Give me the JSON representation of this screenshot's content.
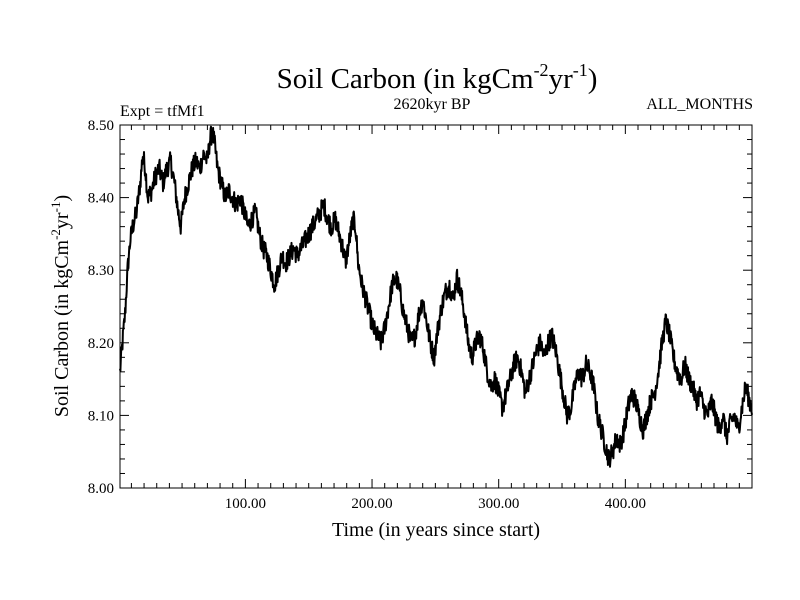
{
  "chart_data": {
    "type": "line",
    "title_main": "Soil Carbon (in kgCm",
    "title_sup1": "-2",
    "title_mid": "yr",
    "title_sup2": "-1",
    "title_end": ")",
    "subtitle_left": "Expt = tfMf1",
    "subtitle_center": "2620kyr BP",
    "subtitle_right": "ALL_MONTHS",
    "xlabel": "Time (in years since start)",
    "ylabel_main": "Soil Carbon (in kgCm",
    "ylabel_sup1": "-2",
    "ylabel_mid": "yr",
    "ylabel_sup2": "-1",
    "ylabel_end": ")",
    "xlim": [
      1,
      500
    ],
    "ylim": [
      8.0,
      8.5
    ],
    "x_ticks": [
      {
        "value": 100,
        "label": "100.00"
      },
      {
        "value": 200,
        "label": "200.00"
      },
      {
        "value": 300,
        "label": "300.00"
      },
      {
        "value": 400,
        "label": "400.00"
      }
    ],
    "y_ticks": [
      {
        "value": 8.0,
        "label": "8.00"
      },
      {
        "value": 8.1,
        "label": "8.10"
      },
      {
        "value": 8.2,
        "label": "8.20"
      },
      {
        "value": 8.3,
        "label": "8.30"
      },
      {
        "value": 8.4,
        "label": "8.40"
      },
      {
        "value": 8.5,
        "label": "8.50"
      }
    ],
    "series": [
      {
        "name": "Soil Carbon",
        "color": "#000000",
        "points": [
          [
            1,
            8.16
          ],
          [
            3,
            8.2
          ],
          [
            5,
            8.24
          ],
          [
            7,
            8.3
          ],
          [
            9,
            8.34
          ],
          [
            11,
            8.36
          ],
          [
            14,
            8.38
          ],
          [
            17,
            8.42
          ],
          [
            19,
            8.46
          ],
          [
            21,
            8.44
          ],
          [
            23,
            8.4
          ],
          [
            26,
            8.41
          ],
          [
            29,
            8.43
          ],
          [
            32,
            8.44
          ],
          [
            35,
            8.42
          ],
          [
            38,
            8.44
          ],
          [
            41,
            8.45
          ],
          [
            44,
            8.42
          ],
          [
            47,
            8.38
          ],
          [
            49,
            8.36
          ],
          [
            52,
            8.4
          ],
          [
            55,
            8.42
          ],
          [
            58,
            8.44
          ],
          [
            61,
            8.45
          ],
          [
            64,
            8.44
          ],
          [
            67,
            8.46
          ],
          [
            70,
            8.45
          ],
          [
            72,
            8.48
          ],
          [
            74,
            8.49
          ],
          [
            76,
            8.47
          ],
          [
            78,
            8.44
          ],
          [
            81,
            8.42
          ],
          [
            84,
            8.4
          ],
          [
            87,
            8.41
          ],
          [
            90,
            8.4
          ],
          [
            93,
            8.39
          ],
          [
            96,
            8.4
          ],
          [
            99,
            8.38
          ],
          [
            102,
            8.36
          ],
          [
            105,
            8.37
          ],
          [
            108,
            8.38
          ],
          [
            111,
            8.35
          ],
          [
            114,
            8.33
          ],
          [
            117,
            8.32
          ],
          [
            120,
            8.3
          ],
          [
            123,
            8.28
          ],
          [
            126,
            8.3
          ],
          [
            129,
            8.32
          ],
          [
            132,
            8.31
          ],
          [
            135,
            8.32
          ],
          [
            138,
            8.33
          ],
          [
            141,
            8.32
          ],
          [
            144,
            8.33
          ],
          [
            147,
            8.34
          ],
          [
            150,
            8.35
          ],
          [
            153,
            8.36
          ],
          [
            156,
            8.37
          ],
          [
            159,
            8.38
          ],
          [
            162,
            8.39
          ],
          [
            165,
            8.37
          ],
          [
            168,
            8.36
          ],
          [
            171,
            8.37
          ],
          [
            174,
            8.35
          ],
          [
            177,
            8.33
          ],
          [
            179,
            8.31
          ],
          [
            182,
            8.34
          ],
          [
            185,
            8.37
          ],
          [
            187,
            8.36
          ],
          [
            189,
            8.31
          ],
          [
            192,
            8.28
          ],
          [
            195,
            8.26
          ],
          [
            198,
            8.24
          ],
          [
            201,
            8.22
          ],
          [
            204,
            8.21
          ],
          [
            207,
            8.2
          ],
          [
            210,
            8.22
          ],
          [
            213,
            8.25
          ],
          [
            216,
            8.28
          ],
          [
            219,
            8.29
          ],
          [
            222,
            8.27
          ],
          [
            225,
            8.24
          ],
          [
            228,
            8.22
          ],
          [
            231,
            8.2
          ],
          [
            234,
            8.21
          ],
          [
            237,
            8.24
          ],
          [
            240,
            8.26
          ],
          [
            243,
            8.23
          ],
          [
            246,
            8.2
          ],
          [
            249,
            8.18
          ],
          [
            252,
            8.22
          ],
          [
            255,
            8.25
          ],
          [
            258,
            8.27
          ],
          [
            261,
            8.28
          ],
          [
            264,
            8.26
          ],
          [
            267,
            8.29
          ],
          [
            270,
            8.27
          ],
          [
            273,
            8.24
          ],
          [
            276,
            8.2
          ],
          [
            279,
            8.18
          ],
          [
            282,
            8.2
          ],
          [
            285,
            8.21
          ],
          [
            288,
            8.19
          ],
          [
            291,
            8.16
          ],
          [
            294,
            8.14
          ],
          [
            297,
            8.15
          ],
          [
            300,
            8.13
          ],
          [
            303,
            8.11
          ],
          [
            306,
            8.13
          ],
          [
            309,
            8.15
          ],
          [
            312,
            8.17
          ],
          [
            315,
            8.18
          ],
          [
            318,
            8.16
          ],
          [
            321,
            8.13
          ],
          [
            324,
            8.15
          ],
          [
            327,
            8.17
          ],
          [
            330,
            8.19
          ],
          [
            333,
            8.2
          ],
          [
            336,
            8.18
          ],
          [
            339,
            8.2
          ],
          [
            342,
            8.21
          ],
          [
            345,
            8.19
          ],
          [
            348,
            8.16
          ],
          [
            351,
            8.13
          ],
          [
            354,
            8.1
          ],
          [
            357,
            8.11
          ],
          [
            360,
            8.14
          ],
          [
            363,
            8.16
          ],
          [
            366,
            8.15
          ],
          [
            369,
            8.17
          ],
          [
            372,
            8.16
          ],
          [
            375,
            8.14
          ],
          [
            378,
            8.1
          ],
          [
            381,
            8.08
          ],
          [
            384,
            8.06
          ],
          [
            387,
            8.04
          ],
          [
            390,
            8.05
          ],
          [
            393,
            8.07
          ],
          [
            396,
            8.06
          ],
          [
            399,
            8.08
          ],
          [
            402,
            8.11
          ],
          [
            405,
            8.13
          ],
          [
            408,
            8.12
          ],
          [
            411,
            8.1
          ],
          [
            414,
            8.08
          ],
          [
            417,
            8.1
          ],
          [
            420,
            8.12
          ],
          [
            423,
            8.13
          ],
          [
            426,
            8.16
          ],
          [
            429,
            8.2
          ],
          [
            432,
            8.23
          ],
          [
            435,
            8.21
          ],
          [
            438,
            8.18
          ],
          [
            441,
            8.16
          ],
          [
            444,
            8.15
          ],
          [
            447,
            8.17
          ],
          [
            450,
            8.15
          ],
          [
            453,
            8.14
          ],
          [
            456,
            8.12
          ],
          [
            459,
            8.13
          ],
          [
            462,
            8.11
          ],
          [
            465,
            8.1
          ],
          [
            468,
            8.12
          ],
          [
            471,
            8.1
          ],
          [
            474,
            8.08
          ],
          [
            477,
            8.1
          ],
          [
            480,
            8.07
          ],
          [
            483,
            8.09
          ],
          [
            486,
            8.1
          ],
          [
            489,
            8.08
          ],
          [
            492,
            8.11
          ],
          [
            495,
            8.14
          ],
          [
            498,
            8.12
          ],
          [
            500,
            8.11
          ]
        ]
      }
    ]
  }
}
